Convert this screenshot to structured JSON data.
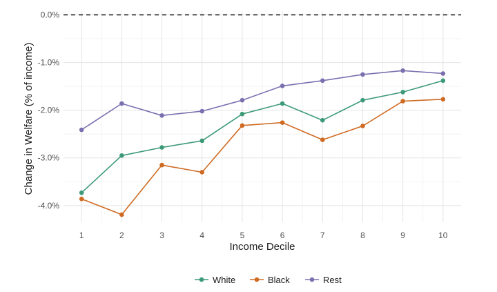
{
  "chart_data": {
    "type": "line",
    "xlabel": "Income Decile",
    "ylabel": "Change in Welfare (% of income)",
    "x": [
      1,
      2,
      3,
      4,
      5,
      6,
      7,
      8,
      9,
      10
    ],
    "xticks": [
      "1",
      "2",
      "3",
      "4",
      "5",
      "6",
      "7",
      "8",
      "9",
      "10"
    ],
    "ylim": [
      -4.35,
      0.08
    ],
    "yticks": [
      0.0,
      -1.0,
      -2.0,
      -3.0,
      -4.0
    ],
    "ytick_labels": [
      "0.0%",
      "-1.0%",
      "-2.0%",
      "-3.0%",
      "-4.0%"
    ],
    "reference_line": {
      "y": 0.0,
      "style": "dashed",
      "color": "#000000"
    },
    "grid": true,
    "legend_position": "bottom",
    "series": [
      {
        "name": "White",
        "color": "#3d9a78",
        "values": [
          -3.73,
          -2.95,
          -2.78,
          -2.64,
          -2.08,
          -1.86,
          -2.21,
          -1.79,
          -1.62,
          -1.38
        ]
      },
      {
        "name": "Black",
        "color": "#cf6a22",
        "values": [
          -3.86,
          -4.19,
          -3.15,
          -3.3,
          -2.32,
          -2.26,
          -2.62,
          -2.33,
          -1.81,
          -1.77
        ]
      },
      {
        "name": "Rest",
        "color": "#7b6fb0",
        "values": [
          -2.41,
          -1.86,
          -2.11,
          -2.02,
          -1.79,
          -1.49,
          -1.38,
          -1.25,
          -1.17,
          -1.23
        ]
      }
    ]
  }
}
